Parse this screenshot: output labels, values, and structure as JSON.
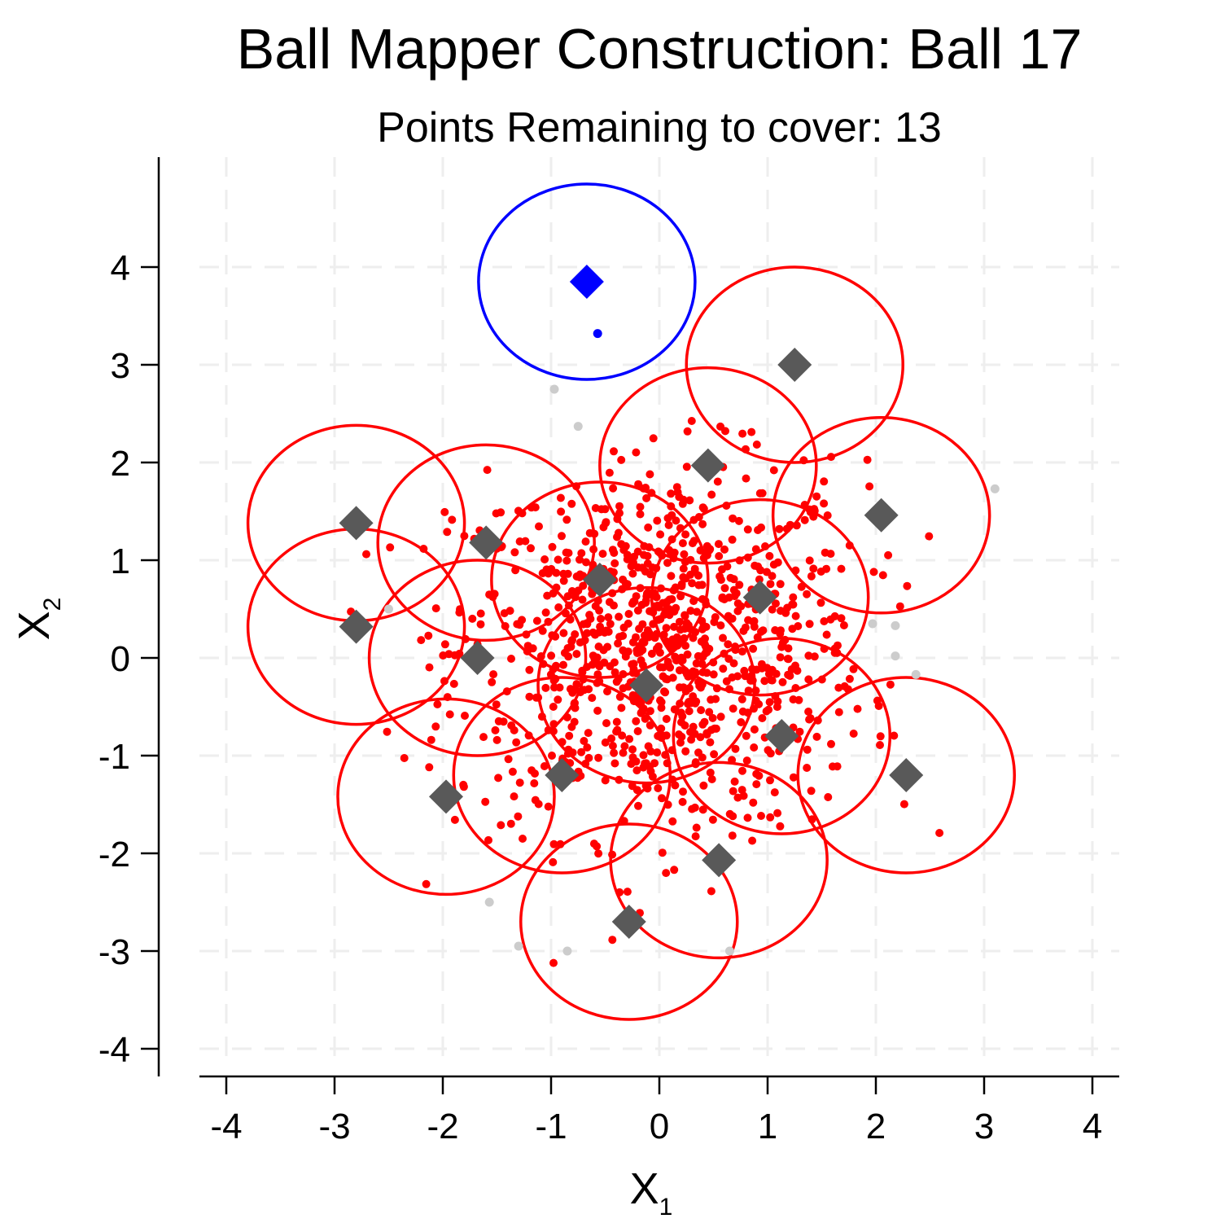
{
  "chart_data": {
    "type": "scatter",
    "title": "Ball Mapper Construction: Ball 17",
    "subtitle": "Points Remaining to cover: 13",
    "xlabel": {
      "main": "X",
      "sub": "1"
    },
    "ylabel": {
      "main": "X",
      "sub": "2"
    },
    "xlim": [
      -4.25,
      4.25
    ],
    "ylim": [
      -4.25,
      5.1
    ],
    "xticks": [
      -4,
      -3,
      -2,
      -1,
      0,
      1,
      2,
      3,
      4
    ],
    "yticks": [
      -4,
      -3,
      -2,
      -1,
      0,
      1,
      2,
      3,
      4
    ],
    "xtick_labels": [
      "-4",
      "-3",
      "-2",
      "-1",
      "0",
      "1",
      "2",
      "3",
      "4"
    ],
    "ytick_labels": [
      "-4",
      "-3",
      "-2",
      "-1",
      "0",
      "1",
      "2",
      "3",
      "4"
    ],
    "grid": true,
    "ball_radius": 1.0,
    "colors": {
      "covered": "#ff0000",
      "current": "#0000ff",
      "uncovered": "#cccccc",
      "previous_center": "#595959",
      "grid": "#eeeeee"
    },
    "previous_centers": [
      {
        "x": -2.8,
        "y": 1.38
      },
      {
        "x": -1.6,
        "y": 1.18
      },
      {
        "x": -0.55,
        "y": 0.8
      },
      {
        "x": 0.45,
        "y": 1.97
      },
      {
        "x": 1.25,
        "y": 3.0
      },
      {
        "x": 2.05,
        "y": 1.46
      },
      {
        "x": 0.93,
        "y": 0.62
      },
      {
        "x": -2.8,
        "y": 0.32
      },
      {
        "x": -1.68,
        "y": 0.0
      },
      {
        "x": -0.12,
        "y": -0.28
      },
      {
        "x": 1.13,
        "y": -0.8
      },
      {
        "x": 2.28,
        "y": -1.2
      },
      {
        "x": -1.97,
        "y": -1.42
      },
      {
        "x": -0.9,
        "y": -1.2
      },
      {
        "x": 0.55,
        "y": -2.07
      },
      {
        "x": -0.28,
        "y": -2.7
      }
    ],
    "current_center": {
      "x": -0.67,
      "y": 3.85
    },
    "current_points": [
      {
        "x": -0.57,
        "y": 3.32
      }
    ],
    "uncovered_points": [
      {
        "x": -0.97,
        "y": 2.75
      },
      {
        "x": -0.75,
        "y": 2.37
      },
      {
        "x": 3.1,
        "y": 1.73
      },
      {
        "x": 2.18,
        "y": 0.33
      },
      {
        "x": 1.97,
        "y": 0.35
      },
      {
        "x": 2.18,
        "y": 0.02
      },
      {
        "x": 2.37,
        "y": -0.17
      },
      {
        "x": -1.57,
        "y": -2.5
      },
      {
        "x": -1.3,
        "y": -2.95
      },
      {
        "x": -0.85,
        "y": -3.0
      },
      {
        "x": 0.65,
        "y": -3.0
      },
      {
        "x": -2.5,
        "y": 0.5
      }
    ],
    "covered_point_count": 1000
  }
}
